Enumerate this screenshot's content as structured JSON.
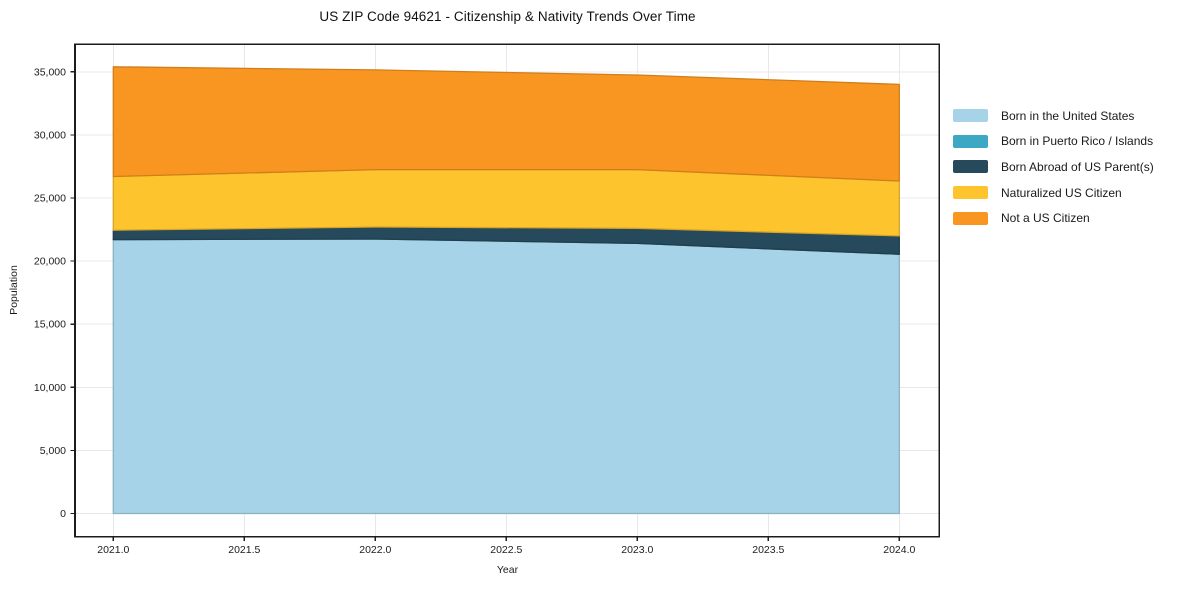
{
  "chart_data": {
    "type": "area",
    "stacked": true,
    "title": "US ZIP Code 94621 - Citizenship & Nativity Trends Over Time",
    "xlabel": "Year",
    "ylabel": "Population",
    "grid": true,
    "legend_position": "right-outside",
    "x": [
      2021,
      2022,
      2023,
      2024
    ],
    "x_tick_values": [
      2021.0,
      2021.5,
      2022.0,
      2022.5,
      2023.0,
      2023.5,
      2024.0
    ],
    "x_tick_labels": [
      "2021.0",
      "2021.5",
      "2022.0",
      "2022.5",
      "2023.0",
      "2023.5",
      "2024.0"
    ],
    "y_tick_values": [
      0,
      5000,
      10000,
      15000,
      20000,
      25000,
      30000,
      35000
    ],
    "y_tick_labels": [
      "0",
      "5,000",
      "10,000",
      "15,000",
      "20,000",
      "25,000",
      "30,000",
      "35,000"
    ],
    "ylim_ticks": [
      0,
      35000
    ],
    "series": [
      {
        "name": "Born in the United States",
        "color": "#a7d3e8",
        "values": [
          21700,
          21750,
          21400,
          20550
        ]
      },
      {
        "name": "Born in Puerto Rico / Islands",
        "color": "#3da8c4",
        "values": [
          0,
          0,
          0,
          0
        ]
      },
      {
        "name": "Born Abroad of US Parent(s)",
        "color": "#27495c",
        "values": [
          750,
          950,
          1200,
          1450
        ]
      },
      {
        "name": "Naturalized US Citizen",
        "color": "#fdc42e",
        "values": [
          4250,
          4550,
          4650,
          4350
        ]
      },
      {
        "name": "Not a US Citizen",
        "color": "#f89621",
        "values": [
          8700,
          7900,
          7500,
          7650
        ]
      }
    ],
    "colors": {
      "spine": "#1c1c1c",
      "grid": "#e8e8e8",
      "tick": "#1c1c1c",
      "background": "#ffffff"
    }
  }
}
